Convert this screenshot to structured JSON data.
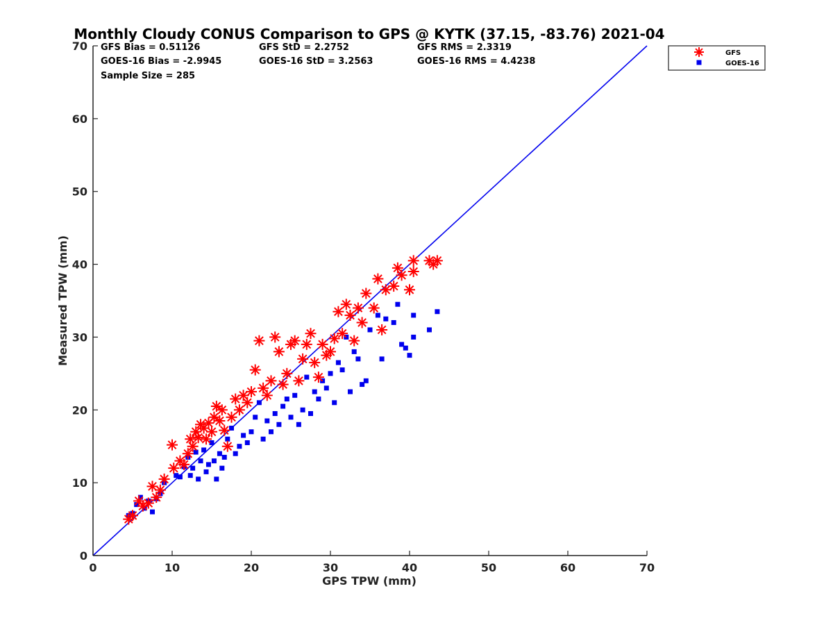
{
  "chart_data": {
    "type": "scatter",
    "title": "Monthly Cloudy CONUS Comparison to GPS @ KYTK (37.15, -83.76) 2021-04",
    "xlabel": "GPS TPW (mm)",
    "ylabel": "Measured TPW (mm)",
    "xlim": [
      0,
      70
    ],
    "ylim": [
      0,
      70
    ],
    "xticks": [
      "0",
      "10",
      "20",
      "30",
      "40",
      "50",
      "60",
      "70"
    ],
    "yticks": [
      "0",
      "10",
      "20",
      "30",
      "40",
      "50",
      "60",
      "70"
    ],
    "legend_position": "outside top-right",
    "stats": {
      "gfs_bias": "GFS Bias = 0.51126",
      "gfs_std": "GFS StD = 2.2752",
      "gfs_rms": "GFS RMS = 2.3319",
      "goes_bias": "GOES-16 Bias = -2.9945",
      "goes_std": "GOES-16 StD = 3.2563",
      "goes_rms": "GOES-16 RMS = 4.4238",
      "sample_size": "Sample Size = 285"
    },
    "reference_line": {
      "name": "1:1",
      "x": [
        0,
        70
      ],
      "y": [
        0,
        70
      ],
      "color": "#0000ee"
    },
    "series": [
      {
        "name": "GFS",
        "marker": "asterisk",
        "color": "#ff0000",
        "points": [
          [
            4.5,
            5.0
          ],
          [
            5.0,
            5.5
          ],
          [
            5.8,
            7.5
          ],
          [
            6.3,
            6.8
          ],
          [
            7.0,
            7.2
          ],
          [
            7.5,
            9.5
          ],
          [
            8.0,
            8.0
          ],
          [
            8.5,
            9.0
          ],
          [
            9.0,
            10.5
          ],
          [
            10.0,
            15.2
          ],
          [
            10.2,
            12.0
          ],
          [
            11.0,
            13.0
          ],
          [
            11.5,
            12.5
          ],
          [
            12.0,
            14.0
          ],
          [
            12.3,
            16.0
          ],
          [
            12.6,
            15.0
          ],
          [
            13.0,
            17.0
          ],
          [
            13.3,
            16.2
          ],
          [
            13.6,
            18.0
          ],
          [
            14.0,
            17.5
          ],
          [
            14.3,
            16.0
          ],
          [
            14.6,
            18.2
          ],
          [
            15.0,
            17.0
          ],
          [
            15.3,
            19.0
          ],
          [
            15.6,
            20.5
          ],
          [
            16.0,
            18.5
          ],
          [
            16.3,
            20.0
          ],
          [
            16.6,
            17.2
          ],
          [
            17.0,
            15.0
          ],
          [
            17.5,
            19.0
          ],
          [
            18.0,
            21.5
          ],
          [
            18.5,
            20.0
          ],
          [
            19.0,
            22.0
          ],
          [
            19.5,
            21.0
          ],
          [
            20.0,
            22.5
          ],
          [
            20.5,
            25.5
          ],
          [
            21.0,
            29.5
          ],
          [
            21.5,
            23.0
          ],
          [
            22.0,
            22.0
          ],
          [
            22.5,
            24.0
          ],
          [
            23.0,
            30.0
          ],
          [
            23.5,
            28.0
          ],
          [
            24.0,
            23.5
          ],
          [
            24.5,
            25.0
          ],
          [
            25.0,
            29.0
          ],
          [
            25.5,
            29.5
          ],
          [
            26.0,
            24.0
          ],
          [
            26.5,
            27.0
          ],
          [
            27.0,
            29.0
          ],
          [
            27.5,
            30.5
          ],
          [
            28.0,
            26.5
          ],
          [
            28.5,
            24.5
          ],
          [
            29.0,
            29.0
          ],
          [
            29.5,
            27.5
          ],
          [
            30.0,
            28.0
          ],
          [
            30.5,
            29.8
          ],
          [
            31.0,
            33.5
          ],
          [
            31.5,
            30.5
          ],
          [
            32.0,
            34.5
          ],
          [
            32.5,
            33.0
          ],
          [
            33.0,
            29.5
          ],
          [
            33.5,
            34.0
          ],
          [
            34.0,
            32.0
          ],
          [
            34.5,
            36.0
          ],
          [
            35.5,
            34.0
          ],
          [
            36.0,
            38.0
          ],
          [
            36.5,
            31.0
          ],
          [
            37.0,
            36.5
          ],
          [
            38.0,
            37.0
          ],
          [
            38.5,
            39.5
          ],
          [
            39.0,
            38.5
          ],
          [
            40.0,
            36.5
          ],
          [
            40.5,
            40.5
          ],
          [
            40.5,
            39.0
          ],
          [
            42.5,
            40.5
          ],
          [
            43.0,
            40.0
          ],
          [
            43.5,
            40.5
          ]
        ]
      },
      {
        "name": "GOES-16",
        "marker": "square",
        "color": "#0000ee",
        "points": [
          [
            4.5,
            5.5
          ],
          [
            5.0,
            5.8
          ],
          [
            5.5,
            7.0
          ],
          [
            6.0,
            8.0
          ],
          [
            6.5,
            6.5
          ],
          [
            7.0,
            7.5
          ],
          [
            7.5,
            6.0
          ],
          [
            8.0,
            7.8
          ],
          [
            8.5,
            8.5
          ],
          [
            9.0,
            10.0
          ],
          [
            10.5,
            11.0
          ],
          [
            11.0,
            10.8
          ],
          [
            11.5,
            12.2
          ],
          [
            12.0,
            13.5
          ],
          [
            12.3,
            11.0
          ],
          [
            12.6,
            12.0
          ],
          [
            13.0,
            14.2
          ],
          [
            13.3,
            10.5
          ],
          [
            13.6,
            13.0
          ],
          [
            14.0,
            14.5
          ],
          [
            14.3,
            11.5
          ],
          [
            14.6,
            12.5
          ],
          [
            15.0,
            15.5
          ],
          [
            15.3,
            13.0
          ],
          [
            15.6,
            10.5
          ],
          [
            16.0,
            14.0
          ],
          [
            16.3,
            12.0
          ],
          [
            16.6,
            13.5
          ],
          [
            17.0,
            16.0
          ],
          [
            17.5,
            17.5
          ],
          [
            18.0,
            14.0
          ],
          [
            18.5,
            15.0
          ],
          [
            19.0,
            16.5
          ],
          [
            19.5,
            15.5
          ],
          [
            20.0,
            17.0
          ],
          [
            20.5,
            19.0
          ],
          [
            21.0,
            21.0
          ],
          [
            21.5,
            16.0
          ],
          [
            22.0,
            18.5
          ],
          [
            22.5,
            17.0
          ],
          [
            23.0,
            19.5
          ],
          [
            23.5,
            18.0
          ],
          [
            24.0,
            20.5
          ],
          [
            24.5,
            21.5
          ],
          [
            25.0,
            19.0
          ],
          [
            25.5,
            22.0
          ],
          [
            26.0,
            18.0
          ],
          [
            26.5,
            20.0
          ],
          [
            27.0,
            24.5
          ],
          [
            27.5,
            19.5
          ],
          [
            28.0,
            22.5
          ],
          [
            28.5,
            21.5
          ],
          [
            29.0,
            24.0
          ],
          [
            29.5,
            23.0
          ],
          [
            30.0,
            25.0
          ],
          [
            30.5,
            21.0
          ],
          [
            31.0,
            26.5
          ],
          [
            31.5,
            25.5
          ],
          [
            32.0,
            30.0
          ],
          [
            32.5,
            22.5
          ],
          [
            33.0,
            28.0
          ],
          [
            33.5,
            27.0
          ],
          [
            34.0,
            23.5
          ],
          [
            34.5,
            24.0
          ],
          [
            35.0,
            31.0
          ],
          [
            36.0,
            33.0
          ],
          [
            36.5,
            27.0
          ],
          [
            37.0,
            32.5
          ],
          [
            38.0,
            32.0
          ],
          [
            38.5,
            34.5
          ],
          [
            39.0,
            29.0
          ],
          [
            39.5,
            28.5
          ],
          [
            40.0,
            27.5
          ],
          [
            40.5,
            30.0
          ],
          [
            40.5,
            33.0
          ],
          [
            42.5,
            31.0
          ],
          [
            43.5,
            33.5
          ]
        ]
      }
    ]
  }
}
